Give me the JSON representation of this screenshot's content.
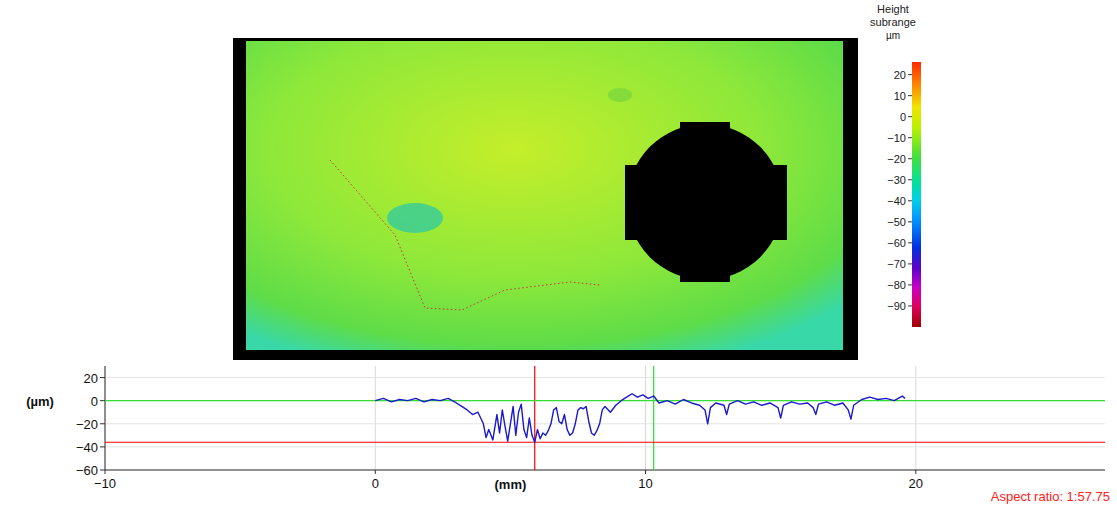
{
  "chart_data": [
    {
      "type": "image",
      "colorbar_title": "Height subrange",
      "colorbar_unit": "µm",
      "colorbar_range": [
        -100,
        26
      ],
      "colorbar_ticks": [
        20,
        10,
        0,
        {
          "value": -10,
          "label": "−10"
        },
        {
          "value": -20,
          "label": "−20"
        },
        {
          "value": -30,
          "label": "−30"
        },
        {
          "value": -40,
          "label": "−40"
        },
        {
          "value": -50,
          "label": "−50"
        },
        {
          "value": -60,
          "label": "−60"
        },
        {
          "value": -70,
          "label": "−70"
        },
        {
          "value": -80,
          "label": "−80"
        },
        {
          "value": -90,
          "label": "−90"
        }
      ]
    },
    {
      "type": "line",
      "color": "#1a1acc",
      "x": [
        0,
        0.3,
        0.6,
        0.9,
        1.2,
        1.5,
        1.8,
        2.1,
        2.4,
        2.7,
        3.0,
        3.2,
        3.4,
        3.6,
        3.8,
        4.0,
        4.1,
        4.2,
        4.35,
        4.5,
        4.6,
        4.7,
        4.8,
        4.9,
        5.0,
        5.1,
        5.2,
        5.3,
        5.4,
        5.5,
        5.6,
        5.7,
        5.8,
        5.9,
        6.0,
        6.1,
        6.2,
        6.3,
        6.4,
        6.5,
        6.6,
        6.7,
        6.8,
        6.9,
        7.0,
        7.1,
        7.2,
        7.3,
        7.4,
        7.5,
        7.6,
        7.7,
        7.8,
        7.9,
        8.0,
        8.1,
        8.2,
        8.3,
        8.4,
        8.5,
        8.7,
        8.9,
        9.1,
        9.3,
        9.5,
        9.7,
        9.9,
        10.1,
        10.3,
        10.5,
        10.8,
        11.1,
        11.4,
        11.7,
        12.0,
        12.2,
        12.3,
        12.4,
        12.6,
        12.9,
        13.0,
        13.1,
        13.4,
        13.7,
        14.0,
        14.3,
        14.6,
        14.9,
        15.0,
        15.1,
        15.4,
        15.7,
        16.0,
        16.2,
        16.3,
        16.4,
        16.7,
        17.0,
        17.3,
        17.5,
        17.6,
        17.7,
        18.0,
        18.3,
        18.6,
        18.9,
        19.2,
        19.5,
        19.6
      ],
      "values": [
        0,
        2,
        -1,
        1,
        0,
        2,
        -1,
        1,
        0,
        2,
        -2,
        -5,
        -8,
        -12,
        -10,
        -20,
        -32,
        -25,
        -34,
        -12,
        -28,
        -8,
        -22,
        -35,
        -20,
        -5,
        -30,
        -10,
        -3,
        -25,
        -32,
        -15,
        -30,
        -36,
        -25,
        -33,
        -28,
        -30,
        -26,
        -20,
        -8,
        -6,
        -18,
        -20,
        -12,
        -25,
        -30,
        -28,
        -20,
        -8,
        -6,
        -7,
        -5,
        -18,
        -28,
        -30,
        -26,
        -20,
        -8,
        -5,
        -10,
        -4,
        0,
        3,
        6,
        3,
        5,
        2,
        4,
        -2,
        0,
        -3,
        1,
        -2,
        -4,
        -8,
        -20,
        -6,
        -2,
        -4,
        -12,
        -3,
        0,
        -3,
        -1,
        -4,
        -2,
        -6,
        -15,
        -4,
        -1,
        -3,
        -2,
        -6,
        -12,
        -3,
        -1,
        -4,
        -2,
        -8,
        -16,
        -4,
        1,
        3,
        1,
        2,
        0,
        4,
        2
      ],
      "xlim": [
        -10,
        27
      ],
      "ylim": [
        -60,
        30
      ],
      "xticks": [
        {
          "value": -10,
          "label": "−10"
        },
        0,
        10,
        20
      ],
      "yticks": [
        20,
        0,
        {
          "value": -20,
          "label": "−20"
        },
        {
          "value": -40,
          "label": "−40"
        },
        {
          "value": -60,
          "label": "−60"
        }
      ],
      "xlabel": "(mm)",
      "ylabel": "(µm)",
      "annotation": "Aspect ratio: 1:57.75",
      "grid": true,
      "cursors": [
        {
          "axis": "x",
          "value": 5.9,
          "color": "#ff0000"
        },
        {
          "axis": "x",
          "value": 10.3,
          "color": "#33dd33"
        },
        {
          "axis": "y",
          "value": 0,
          "color": "#33dd33"
        },
        {
          "axis": "y",
          "value": -36,
          "color": "#ff0000"
        }
      ]
    }
  ]
}
